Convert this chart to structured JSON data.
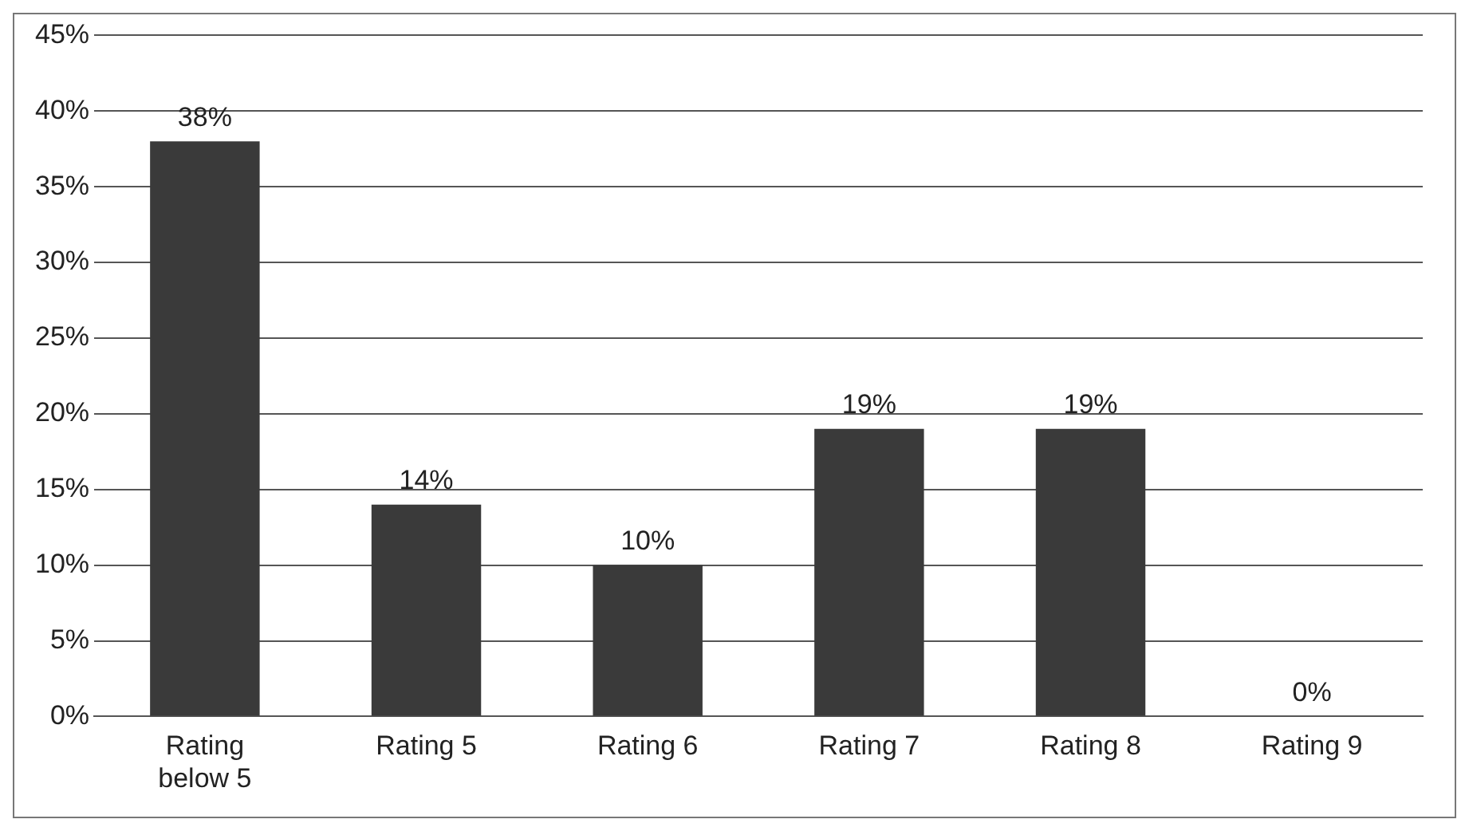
{
  "chart_data": {
    "type": "bar",
    "categories": [
      "Rating below 5",
      "Rating 5",
      "Rating 6",
      "Rating 7",
      "Rating 8",
      "Rating 9"
    ],
    "values": [
      38,
      14,
      10,
      19,
      19,
      0
    ],
    "value_labels": [
      "38%",
      "14%",
      "10%",
      "19%",
      "19%",
      "0%"
    ],
    "color": "#3a3a3a",
    "ylim": [
      0,
      45
    ],
    "yticks": [
      {
        "value": 0,
        "label": "0%"
      },
      {
        "value": 5,
        "label": "5%"
      },
      {
        "value": 10,
        "label": "10%"
      },
      {
        "value": 15,
        "label": "15%"
      },
      {
        "value": 20,
        "label": "20%"
      },
      {
        "value": 25,
        "label": "25%"
      },
      {
        "value": 30,
        "label": "30%"
      },
      {
        "value": 35,
        "label": "35%"
      },
      {
        "value": 40,
        "label": "40%"
      },
      {
        "value": 45,
        "label": "45%"
      }
    ],
    "grid": "y",
    "legend": false
  }
}
